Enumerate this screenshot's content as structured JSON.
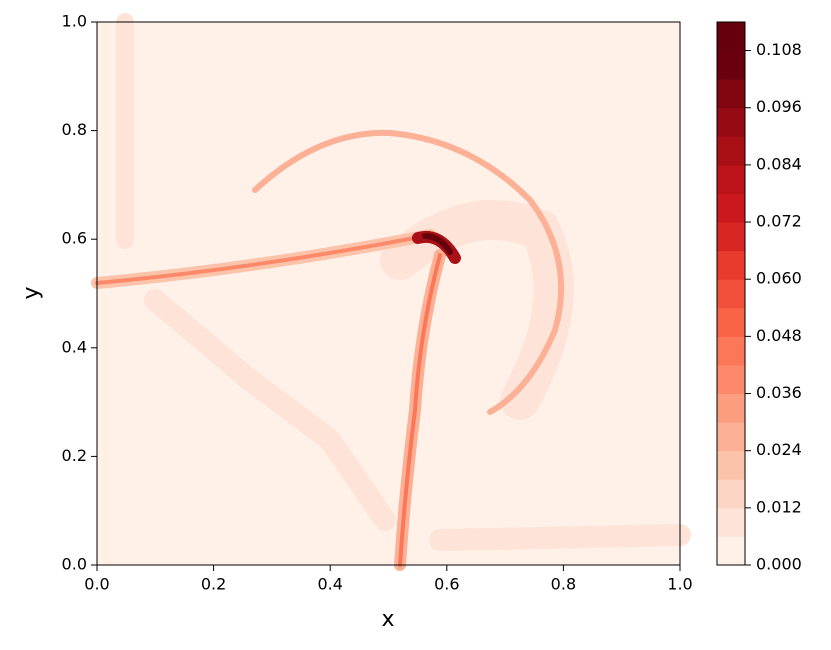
{
  "chart_data": {
    "type": "contour",
    "x_label": "x",
    "y_label": "y",
    "xlim": [
      0,
      1
    ],
    "ylim": [
      0,
      1
    ],
    "xticks": [
      {
        "value": 0,
        "label": "0.0"
      },
      {
        "value": 0.2,
        "label": "0.2"
      },
      {
        "value": 0.4,
        "label": "0.4"
      },
      {
        "value": 0.6,
        "label": "0.6"
      },
      {
        "value": 0.8,
        "label": "0.8"
      },
      {
        "value": 1,
        "label": "1.0"
      }
    ],
    "yticks": [
      {
        "value": 0,
        "label": "0.0"
      },
      {
        "value": 0.2,
        "label": "0.2"
      },
      {
        "value": 0.4,
        "label": "0.4"
      },
      {
        "value": 0.6,
        "label": "0.6"
      },
      {
        "value": 0.8,
        "label": "0.8"
      },
      {
        "value": 1,
        "label": "1.0"
      }
    ],
    "clim": [
      0,
      0.114
    ],
    "cticks": [
      {
        "value": 0,
        "label": "0.000"
      },
      {
        "value": 0.012,
        "label": "0.012"
      },
      {
        "value": 0.024,
        "label": "0.024"
      },
      {
        "value": 0.036,
        "label": "0.036"
      },
      {
        "value": 0.048,
        "label": "0.048"
      },
      {
        "value": 0.06,
        "label": "0.060"
      },
      {
        "value": 0.072,
        "label": "0.072"
      },
      {
        "value": 0.084,
        "label": "0.084"
      },
      {
        "value": 0.096,
        "label": "0.096"
      },
      {
        "value": 0.108,
        "label": "0.108"
      }
    ],
    "levels": [
      0,
      0.006,
      0.012,
      0.018,
      0.024,
      0.03,
      0.036,
      0.042,
      0.048,
      0.054,
      0.06,
      0.066,
      0.072,
      0.078,
      0.084,
      0.09,
      0.096,
      0.102,
      0.108,
      0.114
    ],
    "level_colors": [
      "#fff0e8",
      "#fee4d8",
      "#fdd5c4",
      "#fcc3ab",
      "#fcb095",
      "#fc9d7f",
      "#fc8a6a",
      "#fb7757",
      "#f96346",
      "#f14f39",
      "#e83b2e",
      "#d92523",
      "#cb181d",
      "#bc141a",
      "#a91016",
      "#960b13",
      "#800610",
      "#6a000d",
      "#67000d"
    ]
  }
}
